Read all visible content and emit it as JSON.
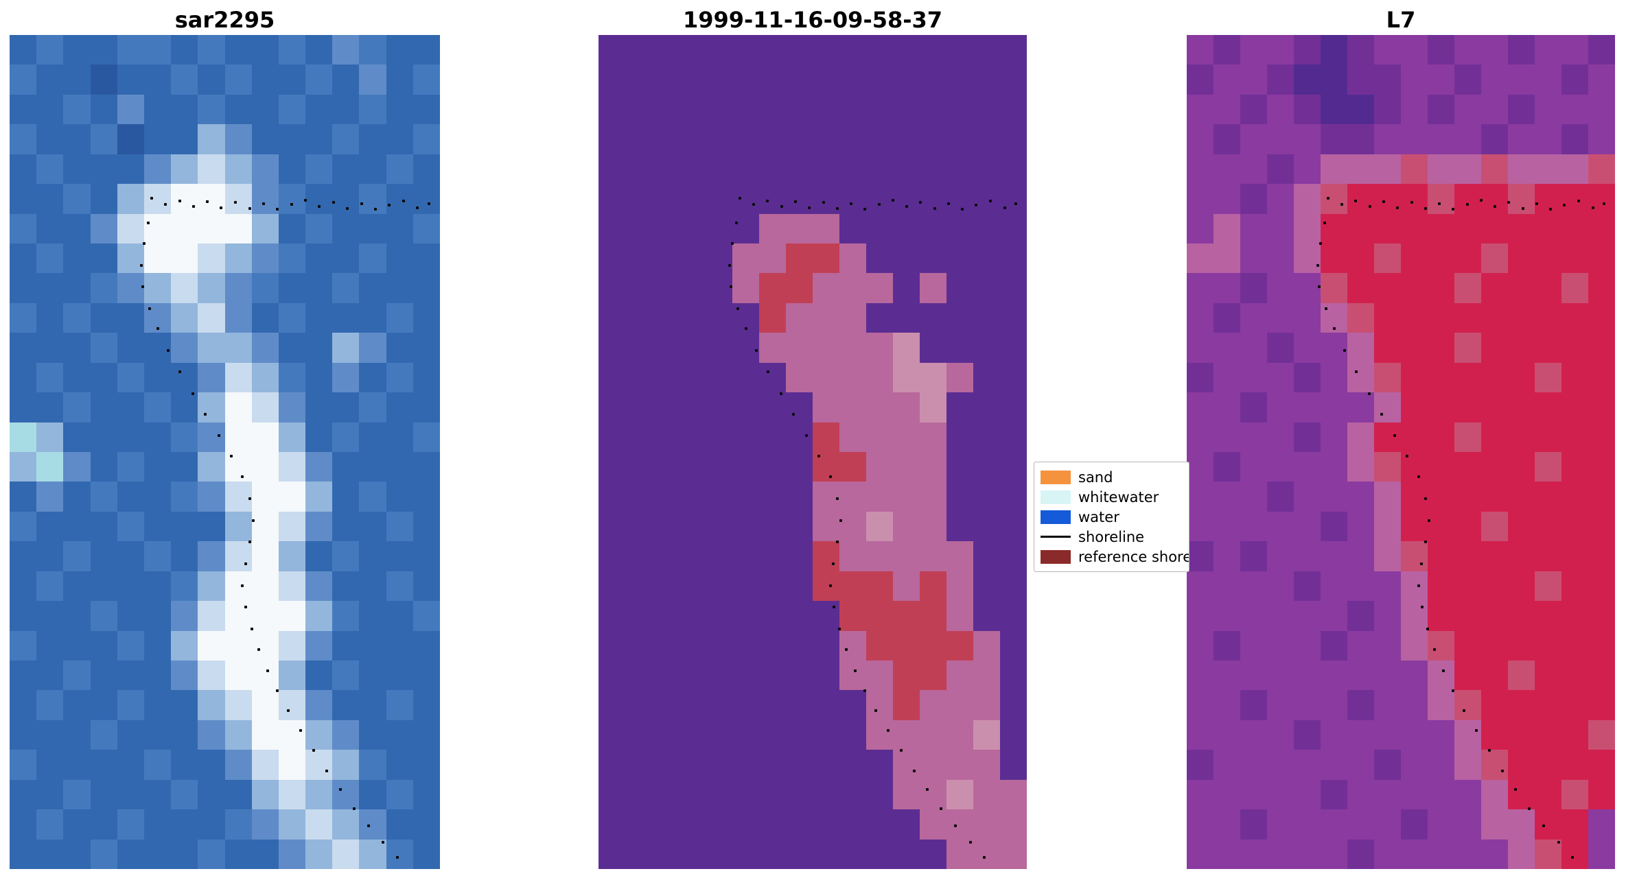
{
  "chart_data": {
    "type": "heatmap",
    "title": "",
    "legend_position": "center-right",
    "panels": [
      {
        "id": "sar2295",
        "title": "sar2295",
        "cols": 16,
        "palette": {
          "a": "#3268b0",
          "b": "#447abd",
          "c": "#2a58a0",
          "d": "#5f8cc8",
          "e": "#93b6dc",
          "f": "#c9dbee",
          "g": "#f5f9fc",
          "h": "#a8dce4"
        },
        "rows": [
          "abaabbabaabadbaa",
          "baacaababaabadab",
          "aabadaabaabaabaa",
          "baabcaaedaaabaab",
          "abaaadefedabaaba",
          "aabaefggfdbaabaa",
          "baadfggggeabaaab",
          "abaaeggfedbaabaa",
          "aaabdefedbaabaaa",
          "babaadefdabaaaba",
          "aaabaadeedaaedaa",
          "abaabaadfebadaba",
          "aabaabaegfdaabaa",
          "heaaaabdggeabaab",
          "ehdabaaeggfdaaaa",
          "adabaabdfggeabaa",
          "baaabaaaegfdaaba",
          "aabaabadfgeabaaa",
          "abaaaabeggfdaaba",
          "aaabaadfgggebaab",
          "baaabaegggfdaaaa",
          "aabaaadfggeabaaa",
          "abaabaaefgfdaaba",
          "aaabaaadeggedaaa",
          "baaaabaadfgfebaa",
          "aabaaabaaefedaba",
          "abaabaaabdefedaa",
          "aaabaaabaadefeba"
        ]
      },
      {
        "id": "classification",
        "title": "1999-11-16-09-58-37",
        "cols": 16,
        "palette": {
          "p": "#5b2d92",
          "q": "#b8689c",
          "r": "#c13f55",
          "t": "#cb8fae",
          "s": "#8f4f9a"
        },
        "rows": [
          "pppppppppppppppp",
          "pppppppppppppppp",
          "pppppppppppppppp",
          "pppppppppppppppp",
          "pppppppppppppppp",
          "pppppppppppppppp",
          "ppppppqqqppppppp",
          "pppppqqrrqpppppp",
          "pppppqrrqqqpqppp",
          "pppppprqqqpppppp",
          "ppppppqqqqqtpppp",
          "pppppppqqqqttqpp",
          "ppppppppqqqqtppp",
          "pppppppprqqqqppp",
          "pppppppprrqqqppp",
          "ppppppppqqqqqppp",
          "ppppppppqqtqqppp",
          "pppppppprqqqqqpp",
          "pppppppprrrqrqpp",
          "ppppppppprrrrqpp",
          "pppppppppqrrrrqp",
          "pppppppppqqrrqqp",
          "ppppppppppqrqqqp",
          "ppppppppppqqqqtp",
          "pppppppppppqqqqp",
          "pppppppppppqqtqq",
          "ppppppppppppqqqq",
          "pppppppppppppqqq"
        ]
      },
      {
        "id": "l7",
        "title": "L7",
        "cols": 16,
        "palette": {
          "u": "#8b3aa0",
          "v": "#723097",
          "z": "#532b90",
          "w": "#b862a2",
          "x": "#d2204e",
          "y": "#c94f72"
        },
        "rows": [
          "uvuuvzvuuvuuvuuv",
          "vuuvzzvvuuvuuuvu",
          "uuvuvzzvuvuuvuuu",
          "uvuuuvvuuuuvuuvu",
          "uuuvuwwwywwywwwy",
          "uuvuwyxxxyxxyxxx",
          "uwuuwxxxxxxxxxxx",
          "wwuuwxxyxxxyxxxx",
          "uuvuuyxxxxyxxxyx",
          "uvuuuwyxxxxxxxxx",
          "uuuvuuwxxxyxxxxx",
          "vuuuvuwyxxxxxyxx",
          "uuvuuuuwxxxxxxxx",
          "uuuuvuwxxxyxxxxx",
          "uvuuuuwyxxxxxyxx",
          "uuuvuuuwxxxxxxxx",
          "uuuuuvuwxxxyxxxx",
          "vuvuuuuwyxxxxxxx",
          "uuuuvuuuwxxxxyxx",
          "uuuuuuvuwxxxxxxx",
          "uvuuuvuuwyxxxxxx",
          "uuuuuuuuuwxxyxxx",
          "uuvuuuvuuwyxxxxx",
          "uuuuvuuuuuwxxxxy",
          "vuuuuuuvuuwyxxxx",
          "uuuuuvuuuuuwxxyx",
          "uuvuuuuuvuuwwxxu",
          "uuuuuuvuuuuuwyxu"
        ]
      }
    ],
    "shoreline_dots": [
      [
        0.33,
        0.196
      ],
      [
        0.362,
        0.203
      ],
      [
        0.395,
        0.199
      ],
      [
        0.428,
        0.206
      ],
      [
        0.46,
        0.2
      ],
      [
        0.492,
        0.207
      ],
      [
        0.525,
        0.201
      ],
      [
        0.558,
        0.208
      ],
      [
        0.59,
        0.202
      ],
      [
        0.622,
        0.209
      ],
      [
        0.655,
        0.203
      ],
      [
        0.688,
        0.198
      ],
      [
        0.72,
        0.206
      ],
      [
        0.752,
        0.201
      ],
      [
        0.785,
        0.208
      ],
      [
        0.818,
        0.202
      ],
      [
        0.85,
        0.209
      ],
      [
        0.882,
        0.204
      ],
      [
        0.915,
        0.199
      ],
      [
        0.948,
        0.207
      ],
      [
        0.975,
        0.202
      ],
      [
        0.322,
        0.225
      ],
      [
        0.312,
        0.25
      ],
      [
        0.306,
        0.276
      ],
      [
        0.309,
        0.302
      ],
      [
        0.325,
        0.328
      ],
      [
        0.345,
        0.352
      ],
      [
        0.368,
        0.378
      ],
      [
        0.396,
        0.404
      ],
      [
        0.426,
        0.43
      ],
      [
        0.455,
        0.455
      ],
      [
        0.486,
        0.48
      ],
      [
        0.515,
        0.505
      ],
      [
        0.541,
        0.53
      ],
      [
        0.558,
        0.556
      ],
      [
        0.566,
        0.582
      ],
      [
        0.558,
        0.608
      ],
      [
        0.548,
        0.634
      ],
      [
        0.541,
        0.66
      ],
      [
        0.549,
        0.686
      ],
      [
        0.563,
        0.712
      ],
      [
        0.579,
        0.737
      ],
      [
        0.599,
        0.762
      ],
      [
        0.622,
        0.786
      ],
      [
        0.648,
        0.81
      ],
      [
        0.676,
        0.834
      ],
      [
        0.706,
        0.858
      ],
      [
        0.737,
        0.882
      ],
      [
        0.768,
        0.905
      ],
      [
        0.8,
        0.928
      ],
      [
        0.834,
        0.948
      ],
      [
        0.868,
        0.968
      ],
      [
        0.901,
        0.986
      ]
    ],
    "legend": {
      "items": [
        {
          "label": "sand",
          "type": "patch",
          "color": "#f5923e"
        },
        {
          "label": "whitewater",
          "type": "patch",
          "color": "#d8f4f4"
        },
        {
          "label": "water",
          "type": "patch",
          "color": "#155ad8"
        },
        {
          "label": "shoreline",
          "type": "line",
          "color": "#000000"
        },
        {
          "label": "reference shore",
          "type": "patch",
          "color": "#8b2a2a"
        }
      ]
    }
  }
}
